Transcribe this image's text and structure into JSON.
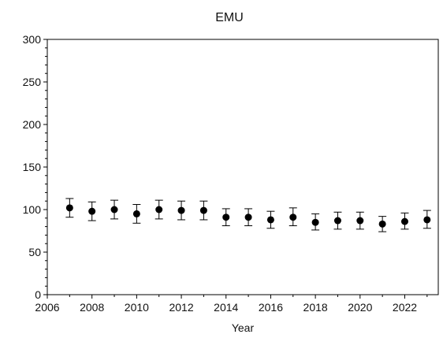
{
  "chart_data": {
    "type": "scatter",
    "title": "EMU",
    "xlabel": "Year",
    "ylabel": "",
    "xlim": [
      2006,
      2023.5
    ],
    "ylim": [
      0,
      300
    ],
    "xticks": [
      2006,
      2008,
      2010,
      2012,
      2014,
      2016,
      2018,
      2020,
      2022
    ],
    "yticks": [
      0,
      50,
      100,
      150,
      200,
      250,
      300
    ],
    "grid": false,
    "series": [
      {
        "x": [
          2007,
          2008,
          2009,
          2010,
          2011,
          2012,
          2013,
          2014,
          2015,
          2016,
          2017,
          2018,
          2019,
          2020,
          2021,
          2022,
          2023
        ],
        "y": [
          102,
          98,
          100,
          95,
          100,
          99,
          99,
          91,
          91,
          88,
          91,
          85,
          87,
          87,
          83,
          86,
          88
        ],
        "y_low": [
          91,
          87,
          89,
          84,
          89,
          88,
          88,
          81,
          81,
          78,
          81,
          76,
          77,
          77,
          74,
          77,
          78
        ],
        "y_high": [
          113,
          109,
          111,
          106,
          111,
          110,
          110,
          101,
          101,
          98,
          102,
          95,
          97,
          97,
          92,
          96,
          99
        ]
      }
    ]
  }
}
